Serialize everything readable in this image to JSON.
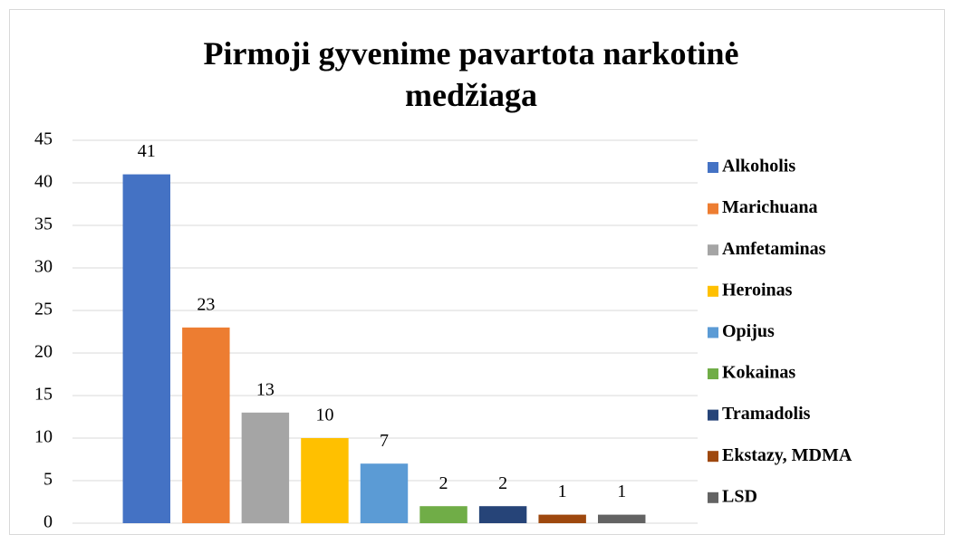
{
  "chart_data": {
    "type": "bar",
    "title": "Pirmoji gyvenime pavartota narkotinė medžiaga",
    "series": [
      {
        "name": "Alkoholis",
        "color": "#4472c4",
        "values": [
          41
        ]
      },
      {
        "name": "Marichuana",
        "color": "#ed7d31",
        "values": [
          23
        ]
      },
      {
        "name": "Amfetaminas",
        "color": "#a5a5a5",
        "values": [
          13
        ]
      },
      {
        "name": "Heroinas",
        "color": "#ffc000",
        "values": [
          10
        ]
      },
      {
        "name": "Opijus",
        "color": "#5b9bd5",
        "values": [
          7
        ]
      },
      {
        "name": "Kokainas",
        "color": "#70ad47",
        "values": [
          2
        ]
      },
      {
        "name": "Tramadolis",
        "color": "#264478",
        "values": [
          2
        ]
      },
      {
        "name": "Ekstazy, MDMA",
        "color": "#9e480e",
        "values": [
          1
        ]
      },
      {
        "name": "LSD",
        "color": "#636363",
        "values": [
          1
        ]
      }
    ],
    "ylim": [
      0,
      45
    ],
    "yticks": [
      0,
      5,
      10,
      15,
      20,
      25,
      30,
      35,
      40,
      45
    ],
    "grid": true,
    "legend": "right"
  }
}
